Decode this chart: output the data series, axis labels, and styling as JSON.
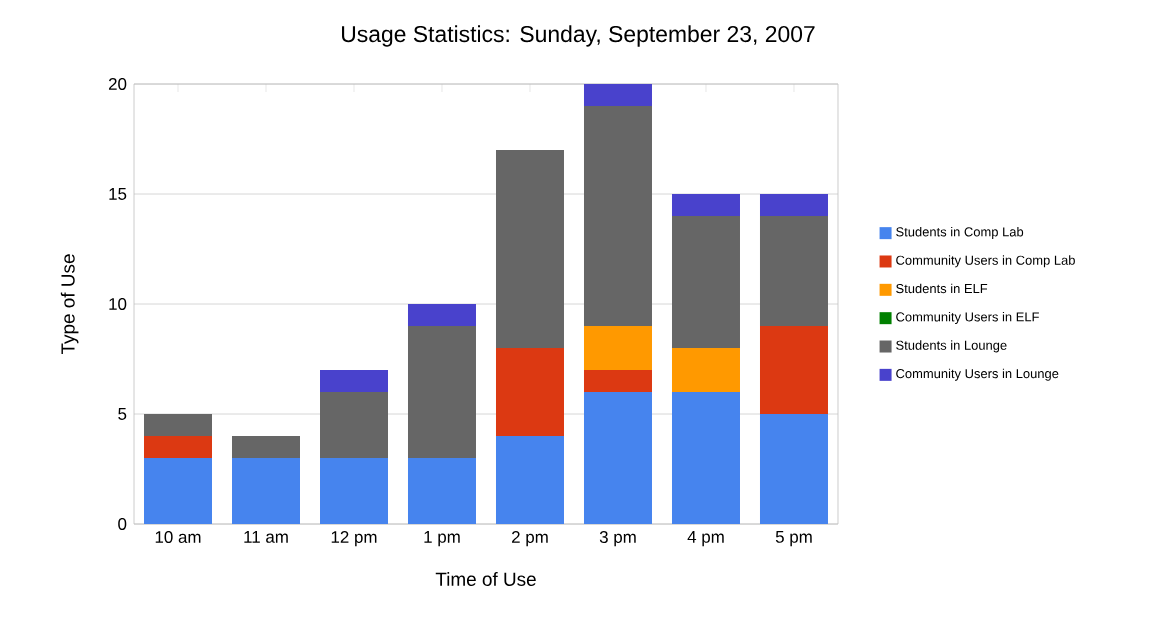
{
  "chart_data": {
    "type": "bar",
    "stacked": true,
    "title": "Usage Statistics: Sunday, September 23, 2007",
    "xlabel": "Time of Use",
    "ylabel": "Type of Use",
    "categories": [
      "10 am",
      "11 am",
      "12 pm",
      "1 pm",
      "2 pm",
      "3 pm",
      "4 pm",
      "5 pm"
    ],
    "series": [
      {
        "name": "Students in Comp Lab",
        "color": "#4684ee",
        "values": [
          3,
          3,
          3,
          3,
          4,
          6,
          6,
          5
        ]
      },
      {
        "name": "Community Users in Comp Lab",
        "color": "#dc3912",
        "values": [
          1,
          0,
          0,
          0,
          4,
          1,
          0,
          4
        ]
      },
      {
        "name": "Students in ELF",
        "color": "#ff9900",
        "values": [
          0,
          0,
          0,
          0,
          0,
          2,
          2,
          0
        ]
      },
      {
        "name": "Community Users in ELF",
        "color": "#008000",
        "values": [
          0,
          0,
          0,
          0,
          0,
          0,
          0,
          0
        ]
      },
      {
        "name": "Students in Lounge",
        "color": "#666666",
        "values": [
          1,
          1,
          3,
          6,
          9,
          10,
          6,
          5
        ]
      },
      {
        "name": "Community Users in Lounge",
        "color": "#4942cc",
        "values": [
          0,
          0,
          1,
          1,
          0,
          1,
          1,
          1
        ]
      }
    ],
    "ylim": [
      0,
      20
    ],
    "yticks": [
      0,
      5,
      10,
      15,
      20
    ],
    "grid": "y",
    "legend": "right"
  }
}
